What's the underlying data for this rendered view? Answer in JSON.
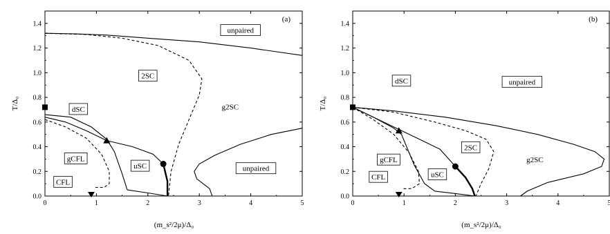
{
  "chart_data": [
    {
      "type": "line",
      "panel_tag": "(a)",
      "xlabel": "(m_s²/2μ)/Δ₀",
      "ylabel": "T/Δ₀",
      "xlim": [
        0,
        5
      ],
      "ylim": [
        0,
        1.5
      ],
      "xticks": [
        0,
        1,
        2,
        3,
        4,
        5
      ],
      "yticks": [
        0.0,
        0.2,
        0.4,
        0.6,
        0.8,
        1.0,
        1.2,
        1.4
      ],
      "ytick_labels": [
        "0.0",
        "0.2",
        "0.4",
        "0.6",
        "0.8",
        "1.0",
        "1.2",
        "1.4"
      ],
      "grid": false,
      "series": [
        {
          "style": "solid",
          "points": [
            [
              0,
              1.32
            ],
            [
              0.6,
              1.315
            ],
            [
              1.2,
              1.305
            ],
            [
              2.0,
              1.28
            ],
            [
              3.0,
              1.25
            ],
            [
              4.0,
              1.2
            ],
            [
              5.0,
              1.14
            ]
          ]
        },
        {
          "style": "dashed",
          "points": [
            [
              0,
              1.32
            ],
            [
              0.8,
              1.31
            ],
            [
              1.5,
              1.28
            ],
            [
              2.2,
              1.22
            ],
            [
              2.8,
              1.1
            ],
            [
              3.05,
              0.95
            ],
            [
              3.0,
              0.82
            ],
            [
              2.8,
              0.62
            ],
            [
              2.6,
              0.42
            ],
            [
              2.45,
              0.2
            ],
            [
              2.4,
              0.0
            ]
          ]
        },
        {
          "style": "solid",
          "points": [
            [
              0,
              0.64
            ],
            [
              0.4,
              0.6
            ],
            [
              0.8,
              0.53
            ],
            [
              1.2,
              0.45
            ],
            [
              1.7,
              0.4
            ],
            [
              2.1,
              0.34
            ],
            [
              2.3,
              0.26
            ]
          ]
        },
        {
          "style": "solid",
          "points": [
            [
              0,
              0.66
            ],
            [
              0.5,
              0.64
            ],
            [
              0.9,
              0.56
            ],
            [
              1.2,
              0.46
            ],
            [
              1.35,
              0.36
            ],
            [
              1.5,
              0.18
            ],
            [
              1.6,
              0.05
            ]
          ]
        },
        {
          "style": "solid",
          "points": [
            [
              1.6,
              0.05
            ],
            [
              2.0,
              0.025
            ],
            [
              2.38,
              0.0
            ]
          ]
        },
        {
          "style": "bold",
          "points": [
            [
              2.3,
              0.26
            ],
            [
              2.38,
              0.12
            ],
            [
              2.38,
              0.0
            ]
          ]
        },
        {
          "style": "dashed",
          "points": [
            [
              0,
              0.62
            ],
            [
              0.4,
              0.56
            ],
            [
              0.8,
              0.47
            ],
            [
              1.1,
              0.34
            ],
            [
              1.25,
              0.2
            ],
            [
              1.25,
              0.1
            ],
            [
              1.15,
              0.07
            ],
            [
              0.98,
              0.07
            ]
          ]
        },
        {
          "style": "solid",
          "points": [
            [
              3.25,
              0.0
            ],
            [
              3.2,
              0.06
            ],
            [
              2.95,
              0.14
            ],
            [
              2.9,
              0.2
            ],
            [
              3.0,
              0.26
            ],
            [
              3.3,
              0.33
            ],
            [
              3.8,
              0.42
            ],
            [
              4.4,
              0.5
            ],
            [
              5.0,
              0.55
            ]
          ]
        }
      ],
      "markers": [
        {
          "shape": "square",
          "x": 0,
          "y": 0.72
        },
        {
          "shape": "triangle-up",
          "x": 1.2,
          "y": 0.45
        },
        {
          "shape": "circle",
          "x": 2.3,
          "y": 0.26
        },
        {
          "shape": "triangle-down",
          "x": 0.9,
          "y": 0.0
        }
      ],
      "region_labels": [
        {
          "text": "unpaired",
          "x": 3.8,
          "y": 1.34,
          "boxed": true
        },
        {
          "text": "2SC",
          "x": 2.0,
          "y": 0.97,
          "boxed": true
        },
        {
          "text": "g2SC",
          "x": 3.6,
          "y": 0.72,
          "boxed": false
        },
        {
          "text": "unpaired",
          "x": 4.1,
          "y": 0.22,
          "boxed": true
        },
        {
          "text": "dSC",
          "x": 0.65,
          "y": 0.7,
          "boxed": true
        },
        {
          "text": "uSC",
          "x": 1.85,
          "y": 0.24,
          "boxed": true
        },
        {
          "text": "gCFL",
          "x": 0.6,
          "y": 0.3,
          "boxed": true
        },
        {
          "text": "CFL",
          "x": 0.35,
          "y": 0.11,
          "boxed": true
        }
      ]
    },
    {
      "type": "line",
      "panel_tag": "(b)",
      "xlabel": "(m_s²/2μ)/Δ₀",
      "ylabel": "T/Δ₀",
      "xlim": [
        0,
        5
      ],
      "ylim": [
        0,
        1.5
      ],
      "xticks": [
        0,
        1,
        2,
        3,
        4,
        5
      ],
      "yticks": [
        0.0,
        0.2,
        0.4,
        0.6,
        0.8,
        1.0,
        1.2,
        1.4
      ],
      "ytick_labels": [
        "0.0",
        "0.2",
        "0.4",
        "0.6",
        "0.8",
        "1.0",
        "1.2",
        "1.4"
      ],
      "grid": false,
      "series": [
        {
          "style": "solid",
          "points": [
            [
              0,
              0.72
            ],
            [
              0.8,
              0.69
            ],
            [
              1.8,
              0.64
            ],
            [
              2.8,
              0.57
            ],
            [
              3.6,
              0.5
            ],
            [
              4.3,
              0.42
            ],
            [
              4.72,
              0.36
            ],
            [
              4.9,
              0.3
            ],
            [
              4.85,
              0.24
            ],
            [
              4.5,
              0.18
            ],
            [
              3.8,
              0.11
            ],
            [
              3.4,
              0.04
            ],
            [
              3.27,
              0.0
            ]
          ]
        },
        {
          "style": "dashed",
          "points": [
            [
              0,
              0.72
            ],
            [
              0.8,
              0.68
            ],
            [
              1.6,
              0.6
            ],
            [
              2.2,
              0.53
            ],
            [
              2.6,
              0.46
            ],
            [
              2.75,
              0.36
            ],
            [
              2.65,
              0.22
            ],
            [
              2.5,
              0.1
            ],
            [
              2.4,
              0.0
            ]
          ]
        },
        {
          "style": "solid",
          "points": [
            [
              0,
              0.72
            ],
            [
              0.5,
              0.62
            ],
            [
              0.9,
              0.54
            ],
            [
              1.3,
              0.46
            ],
            [
              1.7,
              0.38
            ],
            [
              2.0,
              0.24
            ]
          ]
        },
        {
          "style": "solid",
          "points": [
            [
              0,
              0.72
            ],
            [
              0.4,
              0.64
            ],
            [
              0.8,
              0.55
            ],
            [
              0.95,
              0.5
            ],
            [
              1.05,
              0.4
            ],
            [
              1.2,
              0.25
            ],
            [
              1.4,
              0.1
            ],
            [
              1.6,
              0.04
            ]
          ]
        },
        {
          "style": "solid",
          "points": [
            [
              1.6,
              0.04
            ],
            [
              2.0,
              0.02
            ],
            [
              2.38,
              0.0
            ]
          ]
        },
        {
          "style": "bold",
          "points": [
            [
              2.0,
              0.24
            ],
            [
              2.2,
              0.15
            ],
            [
              2.33,
              0.06
            ],
            [
              2.38,
              0.0
            ]
          ]
        },
        {
          "style": "dashed",
          "points": [
            [
              0,
              0.72
            ],
            [
              0.4,
              0.62
            ],
            [
              0.8,
              0.5
            ],
            [
              1.1,
              0.35
            ],
            [
              1.28,
              0.2
            ],
            [
              1.3,
              0.1
            ],
            [
              1.15,
              0.06
            ],
            [
              0.98,
              0.06
            ]
          ]
        }
      ],
      "markers": [
        {
          "shape": "square",
          "x": 0,
          "y": 0.72
        },
        {
          "shape": "triangle-up",
          "x": 0.9,
          "y": 0.53
        },
        {
          "shape": "circle",
          "x": 2.0,
          "y": 0.24
        },
        {
          "shape": "triangle-down",
          "x": 0.9,
          "y": 0.0
        }
      ],
      "region_labels": [
        {
          "text": "dSC",
          "x": 0.95,
          "y": 0.93,
          "boxed": true
        },
        {
          "text": "unpaired",
          "x": 3.3,
          "y": 0.92,
          "boxed": true
        },
        {
          "text": "2SC",
          "x": 2.3,
          "y": 0.39,
          "boxed": true
        },
        {
          "text": "g2SC",
          "x": 3.55,
          "y": 0.29,
          "boxed": false
        },
        {
          "text": "gCFL",
          "x": 0.7,
          "y": 0.29,
          "boxed": true
        },
        {
          "text": "uSC",
          "x": 1.65,
          "y": 0.17,
          "boxed": true
        },
        {
          "text": "CFL",
          "x": 0.5,
          "y": 0.15,
          "boxed": true
        }
      ]
    }
  ]
}
